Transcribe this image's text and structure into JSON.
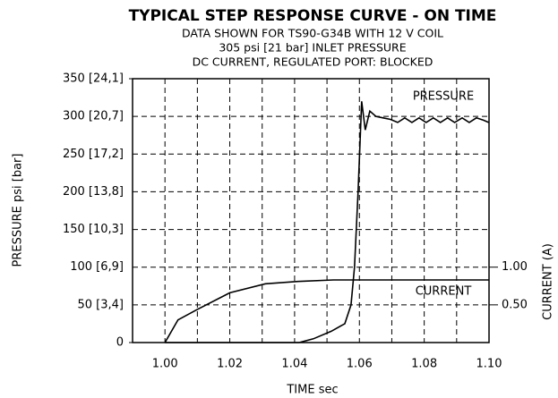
{
  "chart_data": {
    "type": "line",
    "title": "TYPICAL STEP RESPONSE CURVE - ON TIME",
    "subtitle": [
      "DATA SHOWN FOR TS90-G34B WITH 12 V COIL",
      "305 psi [21 bar] INLET PRESSURE",
      "DC CURRENT, REGULATED PORT: BLOCKED"
    ],
    "xlabel": "TIME sec",
    "ylabel": "PRESSURE psi [bar]",
    "y2label": "CURRENT (A)",
    "annotations": [
      "PRESSURE",
      "CURRENT"
    ],
    "xlim": [
      0.99,
      1.1
    ],
    "xticks": [
      {
        "value": 1.0,
        "label": "1.00"
      },
      {
        "value": 1.02,
        "label": "1.02"
      },
      {
        "value": 1.04,
        "label": "1.04"
      },
      {
        "value": 1.06,
        "label": "1.06"
      },
      {
        "value": 1.08,
        "label": "1.08"
      },
      {
        "value": 1.1,
        "label": "1.10"
      }
    ],
    "xminor": [
      1.01,
      1.03,
      1.05,
      1.07,
      1.09
    ],
    "ylim": [
      0,
      350
    ],
    "yticks": [
      0,
      {
        "value": 50,
        "label": "50 [3,4]"
      },
      {
        "value": 100,
        "label": "100 [6,9]"
      },
      {
        "value": 150,
        "label": "150 [10,3]"
      },
      {
        "value": 200,
        "label": "200 [13,8]"
      },
      {
        "value": 250,
        "label": "250 [17,2]"
      },
      {
        "value": 300,
        "label": "300 [20,7]"
      },
      {
        "value": 350,
        "label": "350 [24,1]"
      }
    ],
    "y2lim": [
      0,
      3.5
    ],
    "y2ticks": [
      {
        "value": 0.5,
        "label": "0.50"
      },
      {
        "value": 1.0,
        "label": "1.00"
      }
    ],
    "grid": true,
    "series": [
      {
        "name": "PRESSURE",
        "color": "#000000",
        "x": [
          1.0,
          1.0414,
          1.0458,
          1.0513,
          1.0555,
          1.0574,
          1.0585,
          1.0596,
          1.0607,
          1.0618,
          1.0632,
          1.0651,
          1.0673,
          1.0696,
          1.0718,
          1.074,
          1.0762,
          1.0784,
          1.0806,
          1.0828,
          1.085,
          1.0872,
          1.0894,
          1.0917,
          1.0939,
          1.0961,
          1.0983,
          1.0999
        ],
        "values": [
          0,
          0,
          5,
          15,
          25,
          50,
          100,
          200,
          320,
          282,
          307,
          300,
          298,
          296,
          292,
          298,
          292,
          298,
          292,
          298,
          292,
          298,
          292,
          298,
          292,
          298,
          295,
          292
        ]
      },
      {
        "name": "CURRENT",
        "color": "#000000",
        "axis": "y2",
        "x": [
          1.0,
          1.004,
          1.01,
          1.02,
          1.031,
          1.041,
          1.052,
          1.1
        ],
        "values": [
          0,
          0.3,
          0.44,
          0.66,
          0.78,
          0.81,
          0.83,
          0.83
        ]
      }
    ]
  }
}
